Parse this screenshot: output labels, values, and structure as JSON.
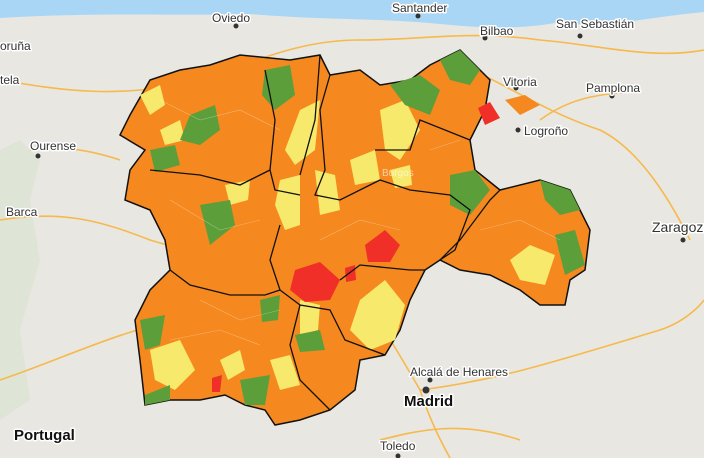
{
  "map": {
    "labels": [
      {
        "text": "Oviedo"
      },
      {
        "text": "Santander"
      },
      {
        "text": "Bilbao"
      },
      {
        "text": "San Sebastián"
      },
      {
        "text": "Vitoria"
      },
      {
        "text": "Pamplona"
      },
      {
        "text": "Logroño"
      },
      {
        "text": "Ourense"
      },
      {
        "text": "Zaragoza"
      },
      {
        "text": "Alcalá de Henares"
      },
      {
        "text": "Madrid"
      },
      {
        "text": "Portugal"
      },
      {
        "text": "Toledo"
      },
      {
        "text": "Burgos"
      },
      {
        "text": "oruña"
      },
      {
        "text": "tela"
      },
      {
        "text": "Barca"
      }
    ]
  }
}
